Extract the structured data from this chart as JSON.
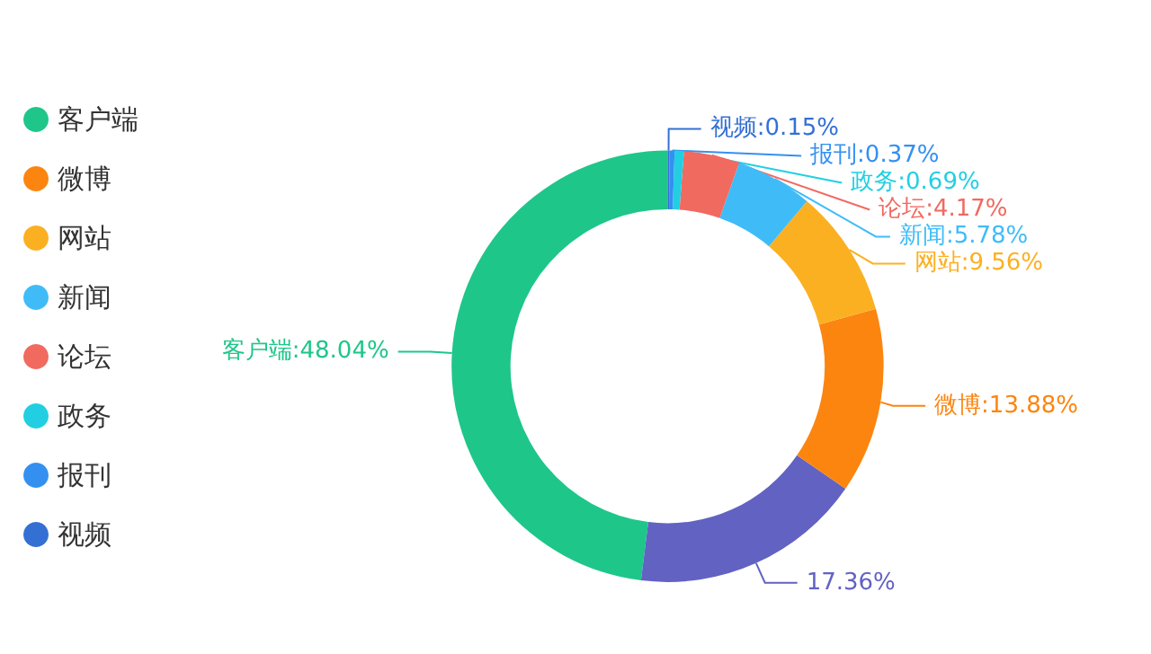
{
  "chart_data": {
    "type": "donut",
    "categories": [
      "客户端",
      null,
      "微博",
      "网站",
      "新闻",
      "论坛",
      "政务",
      "报刊",
      "视频"
    ],
    "values": [
      48.04,
      17.36,
      13.88,
      9.56,
      5.78,
      4.17,
      0.69,
      0.37,
      0.15
    ],
    "colors": [
      "#1ec68a",
      "#6262c2",
      "#fc8510",
      "#fbb022",
      "#3fbcf8",
      "#f06a60",
      "#22cfe2",
      "#3490f0",
      "#3470d4"
    ],
    "value_labels": [
      "客户端:48.04%",
      "17.36%",
      "微博:13.88%",
      "网站:9.56%",
      "新闻:5.78%",
      "论坛:4.17%",
      "政务:0.69%",
      "报刊:0.37%",
      "视频:0.15%"
    ],
    "legend": "left"
  }
}
